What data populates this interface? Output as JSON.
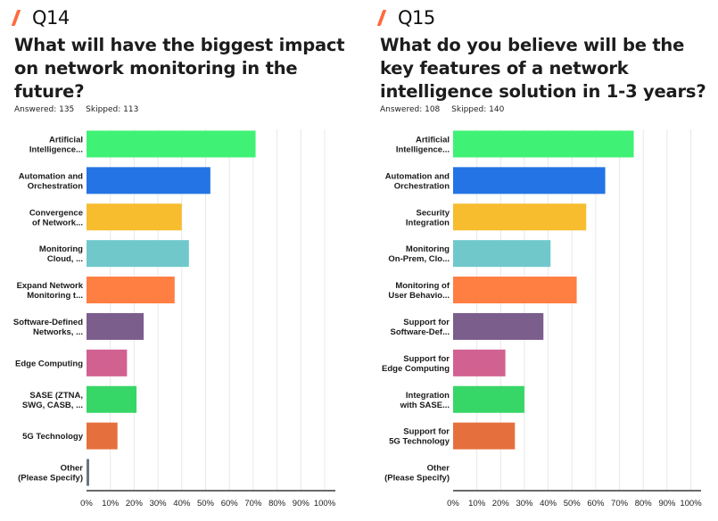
{
  "panels": [
    {
      "question_number": "Q14",
      "question": "What will have the biggest impact on network monitoring in the future?",
      "answered_label": "Answered: 135",
      "skipped_label": "Skipped: 113"
    },
    {
      "question_number": "Q15",
      "question": "What do you believe will be the key features of a network intelligence solution in 1-3 years?",
      "answered_label": "Answered: 108",
      "skipped_label": "Skipped: 140"
    }
  ],
  "colors": {
    "accent_slash": "#ff6a3d",
    "gridline": "#e8e8e8",
    "axis": "#111111"
  },
  "chart_data": [
    {
      "type": "bar",
      "orientation": "horizontal",
      "title": "What will have the biggest impact on network monitoring in the future?",
      "xlabel": "",
      "ylabel": "",
      "xlim": [
        0,
        100
      ],
      "x_tick_labels": [
        "0%",
        "10%",
        "20%",
        "30%",
        "40%",
        "50%",
        "60%",
        "70%",
        "80%",
        "90%",
        "100%"
      ],
      "grid": true,
      "categories": [
        [
          "Artificial",
          "Intelligence..."
        ],
        [
          "Automation and",
          "Orchestration"
        ],
        [
          "Convergence",
          "of Network..."
        ],
        [
          "Monitoring",
          "Cloud, ..."
        ],
        [
          "Expand Network",
          "Monitoring t..."
        ],
        [
          "Software-Defined",
          "Networks, ..."
        ],
        [
          "Edge Computing"
        ],
        [
          "SASE (ZTNA,",
          "SWG, CASB, ..."
        ],
        [
          "5G Technology"
        ],
        [
          "Other",
          "(Please Specify)"
        ]
      ],
      "values": [
        71,
        52,
        40,
        43,
        37,
        24,
        17,
        21,
        13,
        1
      ],
      "bar_colors": [
        "#3ff275",
        "#2474e6",
        "#f7bd2f",
        "#70c8cb",
        "#ff7e42",
        "#7b5e8c",
        "#d16190",
        "#36d667",
        "#e6703d",
        "#6c757d"
      ]
    },
    {
      "type": "bar",
      "orientation": "horizontal",
      "title": "What do you believe will be the key features of a network intelligence solution in 1-3 years?",
      "xlabel": "",
      "ylabel": "",
      "xlim": [
        0,
        100
      ],
      "x_tick_labels": [
        "0%",
        "10%",
        "20%",
        "30%",
        "40%",
        "50%",
        "60%",
        "70%",
        "80%",
        "90%",
        "100%"
      ],
      "grid": true,
      "categories": [
        [
          "Artificial",
          "Intelligence..."
        ],
        [
          "Automation and",
          "Orchestration"
        ],
        [
          "Security",
          "Integration"
        ],
        [
          "Monitoring",
          "On-Prem, Clo..."
        ],
        [
          "Monitoring of",
          "User Behavio..."
        ],
        [
          "Support for",
          "Software-Def..."
        ],
        [
          "Support for",
          "Edge Computing"
        ],
        [
          "Integration",
          "with SASE..."
        ],
        [
          "Support for",
          "5G Technology"
        ],
        [
          "Other",
          "(Please Specify)"
        ]
      ],
      "values": [
        76,
        64,
        56,
        41,
        52,
        38,
        22,
        30,
        26,
        0
      ],
      "bar_colors": [
        "#3ff275",
        "#2474e6",
        "#f7bd2f",
        "#70c8cb",
        "#ff7e42",
        "#7b5e8c",
        "#d16190",
        "#36d667",
        "#e6703d",
        "#6c757d"
      ]
    }
  ]
}
